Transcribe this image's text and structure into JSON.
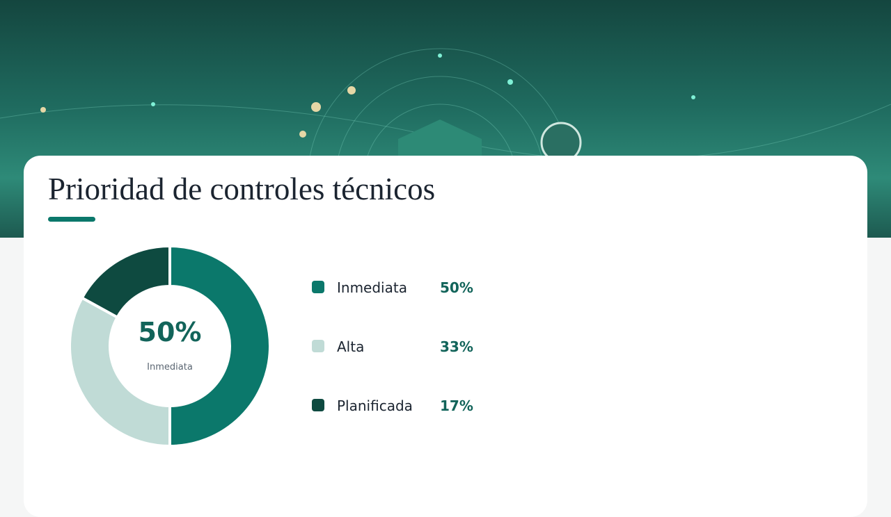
{
  "chart_data": {
    "type": "pie",
    "title": "Prioridad de controles técnicos",
    "categories": [
      "Inmediata",
      "Alta",
      "Planificada"
    ],
    "values": [
      50,
      33,
      17
    ],
    "value_labels": [
      "50%",
      "33%",
      "17%"
    ],
    "colors": [
      "#0b786b",
      "#c0dbd6",
      "#0e4a40"
    ],
    "donut": true
  }
}
